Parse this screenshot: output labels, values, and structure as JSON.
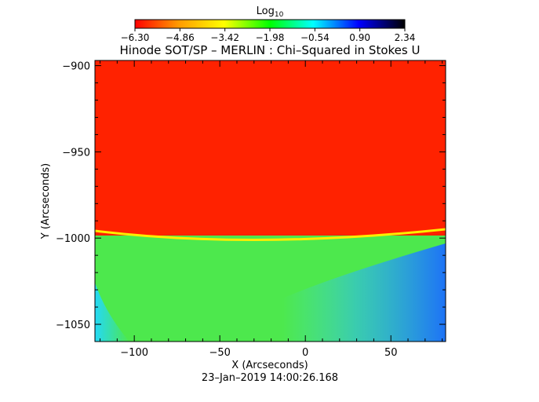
{
  "chart_data": {
    "type": "heatmap",
    "title": "Hinode SOT/SP – MERLIN : Chi–Squared in Stokes U",
    "xlabel": "X (Arcseconds)",
    "ylabel": "Y (Arcseconds)",
    "timestamp": "23–Jan–2019 14:00:26.168",
    "xlim": [
      -123,
      82
    ],
    "ylim": [
      -1060,
      -897
    ],
    "x_ticks": [
      {
        "value": -100,
        "label": "−100"
      },
      {
        "value": -50,
        "label": "−50"
      },
      {
        "value": 0,
        "label": "0"
      },
      {
        "value": 50,
        "label": "50"
      }
    ],
    "y_ticks": [
      {
        "value": -900,
        "label": "−900"
      },
      {
        "value": -950,
        "label": "−950"
      },
      {
        "value": -1000,
        "label": "−1000"
      },
      {
        "value": -1050,
        "label": "−1050"
      }
    ],
    "colorbar": {
      "title": "Log",
      "title_sub": "10",
      "range": [
        -6.3,
        2.34
      ],
      "tick_labels": [
        "−6.30",
        "−4.86",
        "−3.42",
        "−1.98",
        "−0.54",
        "0.90",
        "2.34"
      ],
      "colors": [
        "#ff0000",
        "#ff9900",
        "#ffff00",
        "#00ff00",
        "#00ffff",
        "#0000ff",
        "#000000"
      ]
    },
    "regions": {
      "limb_boundary_y": -998,
      "above_limb_value": -6.0,
      "below_limb_value": -2.2,
      "lower_right_value": -0.6
    }
  }
}
